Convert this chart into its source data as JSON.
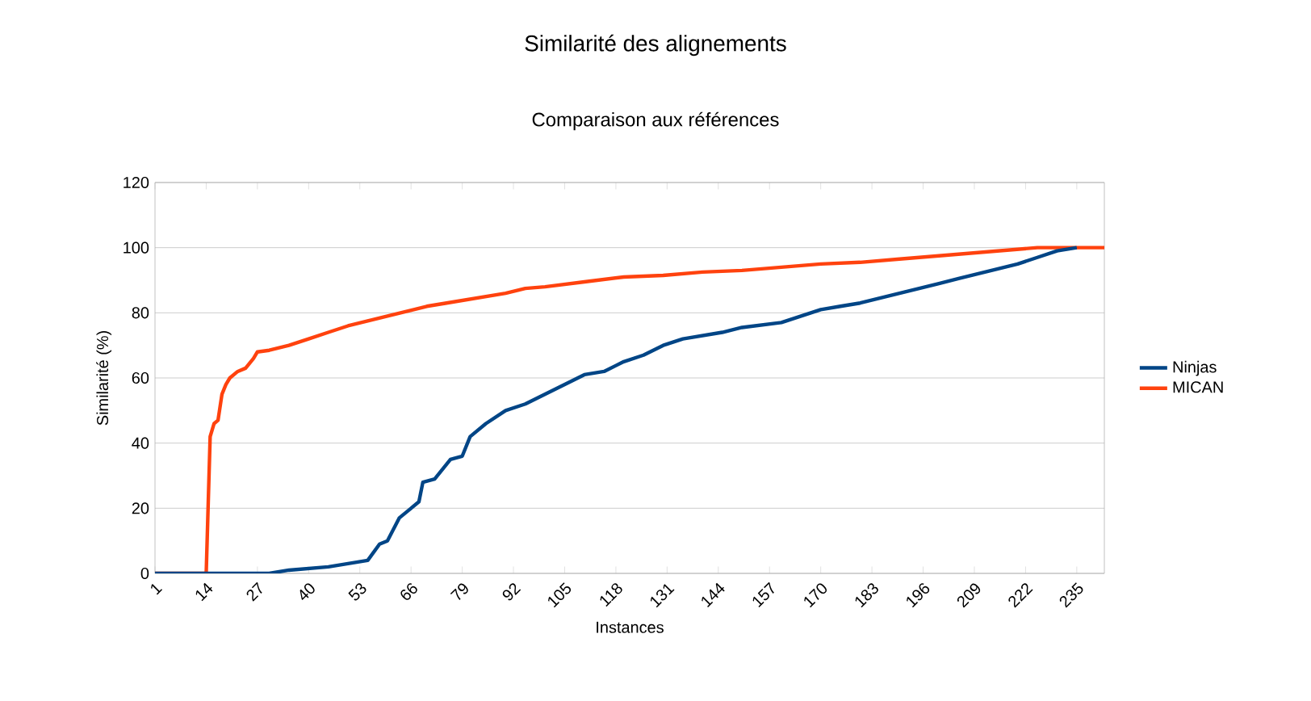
{
  "chart_data": {
    "type": "line",
    "title": "Similarité des alignements",
    "subtitle": "Comparaison aux références",
    "xlabel": "Instances",
    "ylabel": "Similarité (%)",
    "xlim": [
      1,
      242
    ],
    "xticks": [
      1,
      14,
      27,
      40,
      53,
      66,
      79,
      92,
      105,
      118,
      131,
      144,
      157,
      170,
      183,
      196,
      209,
      222,
      235
    ],
    "ylim": [
      0,
      120
    ],
    "yticks": [
      0,
      20,
      40,
      60,
      80,
      100,
      120
    ],
    "grid": "y",
    "legend": "right",
    "marker": "none",
    "line_style": "solid",
    "series": [
      {
        "name": "Ninjas",
        "color": "#004586",
        "x": [
          1,
          14,
          30,
          35,
          45,
          50,
          55,
          58,
          60,
          63,
          66,
          68,
          69,
          72,
          76,
          79,
          81,
          85,
          90,
          95,
          100,
          105,
          110,
          115,
          120,
          125,
          130,
          135,
          140,
          145,
          150,
          160,
          165,
          170,
          175,
          180,
          185,
          190,
          195,
          200,
          205,
          210,
          215,
          220,
          225,
          230,
          235
        ],
        "values": [
          0,
          0,
          0,
          1,
          2,
          3,
          4,
          9,
          10,
          17,
          20,
          22,
          28,
          29,
          35,
          36,
          42,
          46,
          50,
          52,
          55,
          58,
          61,
          62,
          65,
          67,
          70,
          72,
          73,
          74,
          75.5,
          77,
          79,
          81,
          82,
          83,
          84.5,
          86,
          87.5,
          89,
          90.5,
          92,
          93.5,
          95,
          97,
          99,
          100
        ]
      },
      {
        "name": "MICAN",
        "color": "#ff420e",
        "x": [
          1,
          14,
          15,
          16,
          17,
          18,
          19,
          20,
          22,
          24,
          26,
          27,
          30,
          35,
          40,
          45,
          50,
          55,
          60,
          65,
          70,
          75,
          80,
          85,
          90,
          95,
          100,
          110,
          120,
          130,
          140,
          150,
          160,
          170,
          180,
          190,
          200,
          210,
          220,
          225,
          242
        ],
        "values": [
          0,
          0,
          42,
          46,
          47,
          55,
          58,
          60,
          62,
          63,
          66,
          68,
          68.5,
          70,
          72,
          74,
          76,
          77.5,
          79,
          80.5,
          82,
          83,
          84,
          85,
          86,
          87.5,
          88,
          89.5,
          91,
          91.5,
          92.5,
          93,
          94,
          95,
          95.5,
          96.5,
          97.5,
          98.5,
          99.5,
          100,
          100
        ]
      }
    ]
  }
}
